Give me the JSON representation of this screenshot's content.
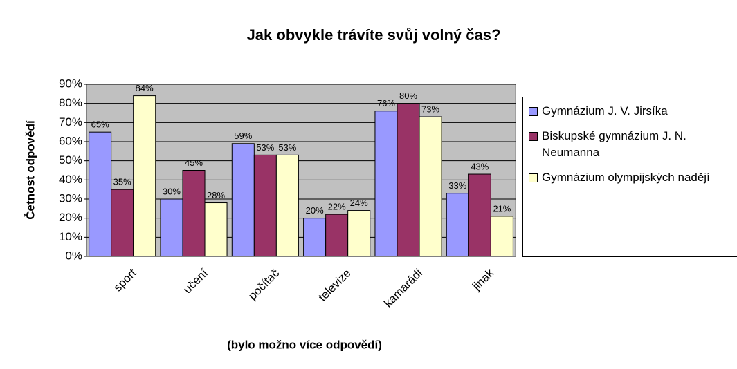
{
  "chart_data": {
    "type": "bar",
    "title": "Jak obvykle trávíte svůj volný čas?",
    "y_label": "Četnost odpovědí",
    "x_label": "(bylo možno více odpovědí)",
    "categories": [
      "sport",
      "učení",
      "počítač",
      "televize",
      "kamarádi",
      "jinak"
    ],
    "series": [
      {
        "name": "Gymnázium J. V. Jirsíka",
        "color": "#9999ff",
        "values": [
          65,
          30,
          59,
          20,
          76,
          33
        ],
        "value_labels": [
          "65%",
          "30%",
          "59%",
          "20%",
          "76%",
          "33%"
        ]
      },
      {
        "name": "Biskupské gymnázium J. N. Neumanna",
        "color": "#993366",
        "values": [
          35,
          45,
          53,
          22,
          80,
          43
        ],
        "value_labels": [
          "35%",
          "45%",
          "53%",
          "22%",
          "80%",
          "43%"
        ]
      },
      {
        "name": "Gymnázium olympijských nadějí",
        "color": "#ffffcc",
        "values": [
          84,
          28,
          53,
          24,
          73,
          21
        ],
        "value_labels": [
          "84%",
          "28%",
          "53%",
          "24%",
          "73%",
          "21%"
        ]
      }
    ],
    "ylim": [
      0,
      90
    ],
    "yticks": [
      {
        "value": 0,
        "label": "0%"
      },
      {
        "value": 10,
        "label": "10%"
      },
      {
        "value": 20,
        "label": "20%"
      },
      {
        "value": 30,
        "label": "30%"
      },
      {
        "value": 40,
        "label": "40%"
      },
      {
        "value": 50,
        "label": "50%"
      },
      {
        "value": 60,
        "label": "60%"
      },
      {
        "value": 70,
        "label": "70%"
      },
      {
        "value": 80,
        "label": "80%"
      },
      {
        "value": 90,
        "label": "90%"
      }
    ],
    "grid": true,
    "plot_background": "#c0c0c0",
    "legend": "right"
  }
}
